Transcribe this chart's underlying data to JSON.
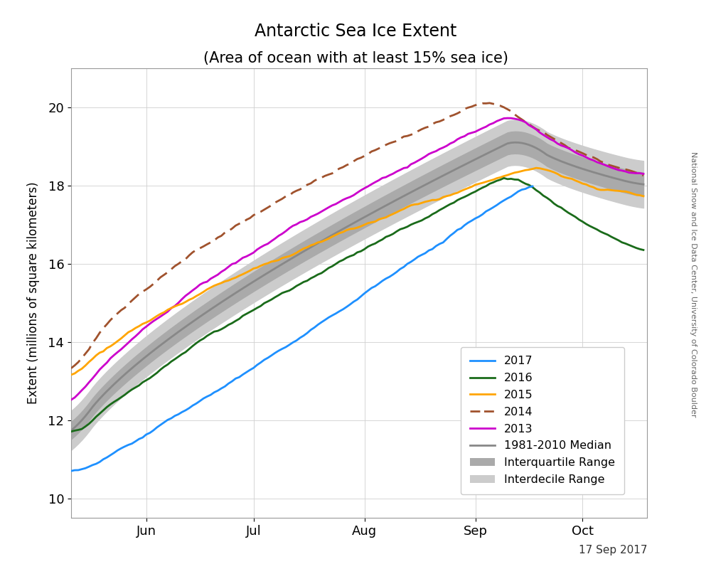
{
  "title_line1": "Antarctic Sea Ice Extent",
  "title_line2": "(Area of ocean with at least 15% sea ice)",
  "ylabel": "Extent (millions of square kilometers)",
  "xlabel_date": "17 Sep 2017",
  "watermark": "National Snow and Ice Data Center, University of Colorado Boulder",
  "ylim": [
    9.5,
    21.0
  ],
  "yticks": [
    10,
    12,
    14,
    16,
    18,
    20
  ],
  "month_labels": [
    "Jun",
    "Jul",
    "Aug",
    "Sep",
    "Oct"
  ],
  "month_days": [
    152,
    182,
    213,
    244,
    274
  ],
  "xlim_start": 131,
  "xlim_end": 292,
  "colors": {
    "2017": "#1E90FF",
    "2016": "#1A6B1A",
    "2015": "#FFA500",
    "2014": "#A0522D",
    "2013": "#CC00CC",
    "median": "#888888",
    "interquartile": "#AAAAAA",
    "interdecile": "#CCCCCC"
  }
}
